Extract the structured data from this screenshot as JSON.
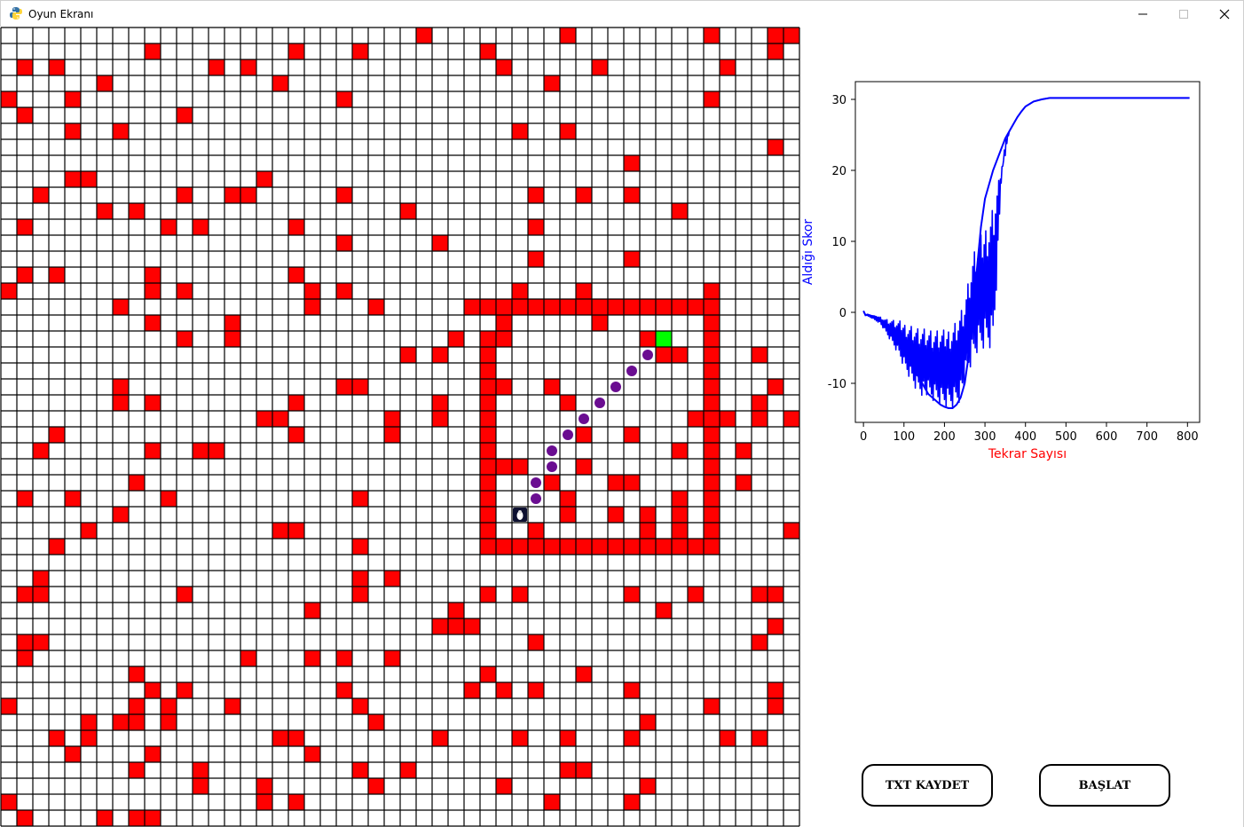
{
  "window": {
    "title": "Oyun Ekranı",
    "controls": [
      "minimize-icon",
      "maximize-icon",
      "close-icon"
    ]
  },
  "grid": {
    "rows": 50,
    "cols": 50,
    "colors": {
      "wall": "#ff0000",
      "empty": "#ffffff",
      "line": "#000000",
      "goal": "#00ff00",
      "path": "#6a0d91",
      "agent": "#0d1030"
    },
    "walls": [
      [
        0,
        26
      ],
      [
        0,
        35
      ],
      [
        0,
        44
      ],
      [
        0,
        48
      ],
      [
        0,
        49
      ],
      [
        1,
        9
      ],
      [
        1,
        18
      ],
      [
        1,
        22
      ],
      [
        1,
        30
      ],
      [
        1,
        48
      ],
      [
        2,
        1
      ],
      [
        2,
        3
      ],
      [
        2,
        13
      ],
      [
        2,
        15
      ],
      [
        2,
        31
      ],
      [
        2,
        37
      ],
      [
        2,
        45
      ],
      [
        3,
        6
      ],
      [
        3,
        17
      ],
      [
        3,
        34
      ],
      [
        4,
        0
      ],
      [
        4,
        4
      ],
      [
        4,
        21
      ],
      [
        4,
        44
      ],
      [
        5,
        1
      ],
      [
        5,
        11
      ],
      [
        6,
        4
      ],
      [
        6,
        7
      ],
      [
        6,
        32
      ],
      [
        6,
        35
      ],
      [
        7,
        48
      ],
      [
        8,
        39
      ],
      [
        9,
        4
      ],
      [
        9,
        5
      ],
      [
        9,
        16
      ],
      [
        10,
        2
      ],
      [
        10,
        11
      ],
      [
        10,
        14
      ],
      [
        10,
        15
      ],
      [
        10,
        21
      ],
      [
        10,
        33
      ],
      [
        10,
        36
      ],
      [
        10,
        39
      ],
      [
        11,
        6
      ],
      [
        11,
        8
      ],
      [
        11,
        25
      ],
      [
        11,
        42
      ],
      [
        12,
        1
      ],
      [
        12,
        10
      ],
      [
        12,
        12
      ],
      [
        12,
        18
      ],
      [
        12,
        33
      ],
      [
        13,
        21
      ],
      [
        13,
        27
      ],
      [
        14,
        33
      ],
      [
        14,
        39
      ],
      [
        15,
        1
      ],
      [
        15,
        3
      ],
      [
        15,
        9
      ],
      [
        15,
        18
      ],
      [
        16,
        0
      ],
      [
        16,
        9
      ],
      [
        16,
        11
      ],
      [
        16,
        19
      ],
      [
        16,
        21
      ],
      [
        16,
        32
      ],
      [
        16,
        36
      ],
      [
        16,
        44
      ],
      [
        17,
        7
      ],
      [
        17,
        19
      ],
      [
        17,
        23
      ],
      [
        17,
        29
      ],
      [
        17,
        30
      ],
      [
        17,
        31
      ],
      [
        17,
        32
      ],
      [
        17,
        33
      ],
      [
        17,
        34
      ],
      [
        17,
        35
      ],
      [
        17,
        36
      ],
      [
        17,
        37
      ],
      [
        17,
        38
      ],
      [
        17,
        39
      ],
      [
        17,
        40
      ],
      [
        17,
        41
      ],
      [
        17,
        42
      ],
      [
        17,
        43
      ],
      [
        17,
        44
      ],
      [
        18,
        9
      ],
      [
        18,
        14
      ],
      [
        18,
        31
      ],
      [
        18,
        37
      ],
      [
        18,
        44
      ],
      [
        19,
        11
      ],
      [
        19,
        14
      ],
      [
        19,
        28
      ],
      [
        19,
        30
      ],
      [
        19,
        31
      ],
      [
        19,
        40
      ],
      [
        19,
        44
      ],
      [
        20,
        25
      ],
      [
        20,
        27
      ],
      [
        20,
        30
      ],
      [
        20,
        41
      ],
      [
        20,
        42
      ],
      [
        20,
        44
      ],
      [
        20,
        47
      ],
      [
        21,
        30
      ],
      [
        21,
        44
      ],
      [
        22,
        7
      ],
      [
        22,
        21
      ],
      [
        22,
        22
      ],
      [
        22,
        30
      ],
      [
        22,
        31
      ],
      [
        22,
        34
      ],
      [
        22,
        44
      ],
      [
        22,
        48
      ],
      [
        23,
        7
      ],
      [
        23,
        9
      ],
      [
        23,
        18
      ],
      [
        23,
        27
      ],
      [
        23,
        30
      ],
      [
        23,
        35
      ],
      [
        23,
        44
      ],
      [
        23,
        47
      ],
      [
        24,
        16
      ],
      [
        24,
        17
      ],
      [
        24,
        24
      ],
      [
        24,
        27
      ],
      [
        24,
        30
      ],
      [
        24,
        43
      ],
      [
        24,
        44
      ],
      [
        24,
        45
      ],
      [
        24,
        47
      ],
      [
        24,
        49
      ],
      [
        25,
        3
      ],
      [
        25,
        18
      ],
      [
        25,
        24
      ],
      [
        25,
        30
      ],
      [
        25,
        36
      ],
      [
        25,
        39
      ],
      [
        25,
        44
      ],
      [
        26,
        2
      ],
      [
        26,
        9
      ],
      [
        26,
        12
      ],
      [
        26,
        13
      ],
      [
        26,
        30
      ],
      [
        26,
        42
      ],
      [
        26,
        44
      ],
      [
        26,
        46
      ],
      [
        27,
        30
      ],
      [
        27,
        31
      ],
      [
        27,
        32
      ],
      [
        27,
        36
      ],
      [
        27,
        44
      ],
      [
        28,
        8
      ],
      [
        28,
        30
      ],
      [
        28,
        34
      ],
      [
        28,
        38
      ],
      [
        28,
        39
      ],
      [
        28,
        44
      ],
      [
        28,
        46
      ],
      [
        29,
        1
      ],
      [
        29,
        4
      ],
      [
        29,
        10
      ],
      [
        29,
        22
      ],
      [
        29,
        30
      ],
      [
        29,
        35
      ],
      [
        29,
        42
      ],
      [
        29,
        44
      ],
      [
        30,
        7
      ],
      [
        30,
        30
      ],
      [
        30,
        35
      ],
      [
        30,
        38
      ],
      [
        30,
        40
      ],
      [
        30,
        42
      ],
      [
        30,
        44
      ],
      [
        31,
        5
      ],
      [
        31,
        17
      ],
      [
        31,
        18
      ],
      [
        31,
        30
      ],
      [
        31,
        33
      ],
      [
        31,
        40
      ],
      [
        31,
        42
      ],
      [
        31,
        44
      ],
      [
        31,
        49
      ],
      [
        32,
        3
      ],
      [
        32,
        22
      ],
      [
        32,
        30
      ],
      [
        32,
        31
      ],
      [
        32,
        32
      ],
      [
        32,
        33
      ],
      [
        32,
        34
      ],
      [
        32,
        35
      ],
      [
        32,
        36
      ],
      [
        32,
        37
      ],
      [
        32,
        38
      ],
      [
        32,
        39
      ],
      [
        32,
        40
      ],
      [
        32,
        41
      ],
      [
        32,
        42
      ],
      [
        32,
        43
      ],
      [
        32,
        44
      ],
      [
        34,
        2
      ],
      [
        34,
        22
      ],
      [
        34,
        24
      ],
      [
        35,
        1
      ],
      [
        35,
        2
      ],
      [
        35,
        11
      ],
      [
        35,
        22
      ],
      [
        35,
        30
      ],
      [
        35,
        32
      ],
      [
        35,
        39
      ],
      [
        35,
        43
      ],
      [
        35,
        47
      ],
      [
        35,
        48
      ],
      [
        36,
        19
      ],
      [
        36,
        28
      ],
      [
        36,
        41
      ],
      [
        37,
        27
      ],
      [
        37,
        28
      ],
      [
        37,
        29
      ],
      [
        37,
        48
      ],
      [
        38,
        1
      ],
      [
        38,
        2
      ],
      [
        38,
        33
      ],
      [
        38,
        47
      ],
      [
        39,
        1
      ],
      [
        39,
        15
      ],
      [
        39,
        19
      ],
      [
        39,
        21
      ],
      [
        39,
        24
      ],
      [
        40,
        8
      ],
      [
        40,
        30
      ],
      [
        40,
        36
      ],
      [
        41,
        9
      ],
      [
        41,
        11
      ],
      [
        41,
        21
      ],
      [
        41,
        29
      ],
      [
        41,
        31
      ],
      [
        41,
        33
      ],
      [
        41,
        39
      ],
      [
        41,
        48
      ],
      [
        42,
        0
      ],
      [
        42,
        8
      ],
      [
        42,
        10
      ],
      [
        42,
        14
      ],
      [
        42,
        22
      ],
      [
        42,
        44
      ],
      [
        42,
        48
      ],
      [
        43,
        5
      ],
      [
        43,
        7
      ],
      [
        43,
        8
      ],
      [
        43,
        10
      ],
      [
        43,
        23
      ],
      [
        43,
        40
      ],
      [
        44,
        3
      ],
      [
        44,
        5
      ],
      [
        44,
        17
      ],
      [
        44,
        18
      ],
      [
        44,
        27
      ],
      [
        44,
        32
      ],
      [
        44,
        35
      ],
      [
        44,
        39
      ],
      [
        44,
        45
      ],
      [
        44,
        47
      ],
      [
        45,
        4
      ],
      [
        45,
        9
      ],
      [
        45,
        19
      ],
      [
        46,
        8
      ],
      [
        46,
        12
      ],
      [
        46,
        22
      ],
      [
        46,
        25
      ],
      [
        46,
        35
      ],
      [
        46,
        36
      ],
      [
        47,
        12
      ],
      [
        47,
        16
      ],
      [
        47,
        23
      ],
      [
        47,
        31
      ],
      [
        47,
        40
      ],
      [
        48,
        0
      ],
      [
        48,
        16
      ],
      [
        48,
        18
      ],
      [
        48,
        34
      ],
      [
        48,
        39
      ],
      [
        49,
        1
      ],
      [
        49,
        6
      ],
      [
        49,
        8
      ],
      [
        49,
        9
      ]
    ],
    "goal": [
      19,
      41
    ],
    "agent": [
      30,
      32
    ],
    "path": [
      [
        20,
        40
      ],
      [
        21,
        39
      ],
      [
        22,
        38
      ],
      [
        23,
        37
      ],
      [
        24,
        36
      ],
      [
        25,
        35
      ],
      [
        26,
        34
      ],
      [
        27,
        34
      ],
      [
        28,
        33
      ],
      [
        29,
        33
      ]
    ]
  },
  "chart_data": {
    "type": "line",
    "xlabel": "Tekrar Sayısı",
    "ylabel": "Aldığı Skor",
    "xlabel_color": "#ff0000",
    "ylabel_color": "#0000ff",
    "series_color": "#0000ff",
    "xlim": [
      -20,
      830
    ],
    "ylim": [
      -15.5,
      32.5
    ],
    "xticks": [
      0,
      100,
      200,
      300,
      400,
      500,
      600,
      700,
      800
    ],
    "yticks": [
      -10,
      0,
      10,
      20,
      30
    ],
    "series": [
      {
        "x": [
          0,
          5,
          10,
          20,
          30,
          40,
          50,
          60,
          70,
          80,
          90,
          100,
          110,
          120,
          130,
          140,
          150,
          160,
          170,
          180,
          190,
          200,
          210,
          220,
          230,
          240,
          250,
          260,
          270,
          280,
          290,
          300,
          310,
          320,
          330,
          340,
          350,
          360,
          370,
          380,
          390,
          400,
          420,
          440,
          460,
          480,
          500,
          550,
          600,
          650,
          700,
          750,
          805
        ],
        "y": [
          0.2,
          -0.4,
          -0.3,
          -0.5,
          -0.6,
          -0.9,
          -1.5,
          -2.0,
          -2.5,
          -3.0,
          -4.0,
          -5.0,
          -6.0,
          -7.5,
          -8.5,
          -9.5,
          -10.5,
          -11.5,
          -12.0,
          -12.5,
          -13.0,
          -13.3,
          -13.5,
          -13.5,
          -13.0,
          -12.0,
          -10.0,
          -6.0,
          0.0,
          6.0,
          12.0,
          16.0,
          18.0,
          20.0,
          21.5,
          23.0,
          24.5,
          25.5,
          26.5,
          27.5,
          28.3,
          29.0,
          29.7,
          30.0,
          30.2,
          30.2,
          30.2,
          30.2,
          30.2,
          30.2,
          30.2,
          30.2,
          30.2
        ],
        "y_min_envelope": [
          0.2,
          -0.4,
          -0.5,
          -0.8,
          -1.2,
          -1.5,
          -2.5,
          -3.5,
          -4.5,
          -5.5,
          -6.5,
          -8.0,
          -9.0,
          -10.0,
          -11.0,
          -11.5,
          -12.0,
          -12.5,
          -13.0,
          -13.0,
          -13.5,
          -13.5,
          -13.6,
          -13.6,
          -13.2,
          -12.5,
          -11.0,
          -9.0,
          -8.0,
          -6.5,
          -6.0,
          -5.5,
          -5.5,
          -5.5,
          5.0,
          18.0,
          24.5,
          25.5,
          26.5,
          27.5,
          28.3,
          29.0,
          29.7,
          30.0,
          30.2,
          30.2,
          30.2,
          30.2,
          30.2,
          30.2,
          30.2,
          30.2,
          30.2
        ],
        "y_max_envelope": [
          0.2,
          -0.4,
          -0.3,
          -0.4,
          -0.5,
          -0.6,
          -0.8,
          -1.0,
          -1.0,
          -1.2,
          -1.2,
          -1.3,
          -1.5,
          -1.5,
          -1.8,
          -2.0,
          -2.0,
          -2.2,
          -2.5,
          -2.5,
          -2.5,
          -2.5,
          -2.0,
          -1.5,
          -0.5,
          0.5,
          2.0,
          5.0,
          8.0,
          10.0,
          11.0,
          12.5,
          14.0,
          16.0,
          18.0,
          20.5,
          22.0,
          25.5,
          26.5,
          27.5,
          28.3,
          29.0,
          29.7,
          30.0,
          30.2,
          30.2,
          30.2,
          30.2,
          30.2,
          30.2,
          30.2,
          30.2,
          30.2
        ]
      }
    ]
  },
  "buttons": {
    "save_label": "TXT KAYDET",
    "start_label": "BAŞLAT"
  }
}
